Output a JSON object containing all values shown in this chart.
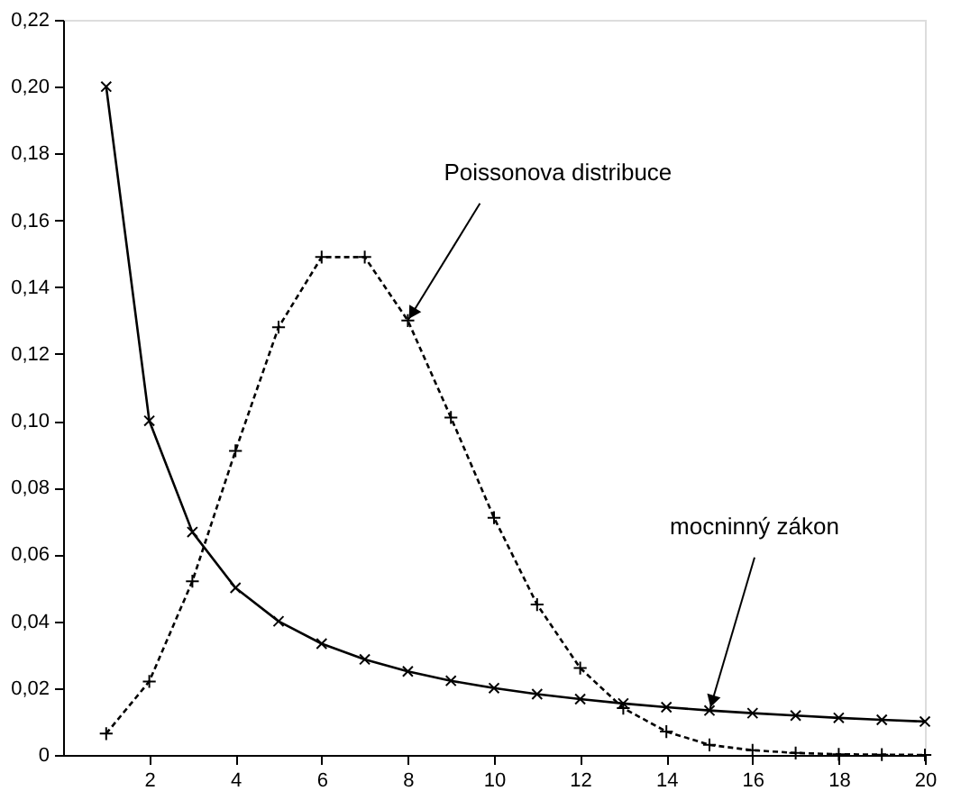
{
  "chart_data": {
    "type": "line",
    "x": [
      1,
      2,
      3,
      4,
      5,
      6,
      7,
      8,
      9,
      10,
      11,
      12,
      13,
      14,
      15,
      16,
      17,
      18,
      19,
      20
    ],
    "series": [
      {
        "color": "#000000",
        "marker": "cross",
        "line_style": "solid",
        "values": [
          0.2,
          0.1,
          0.0667,
          0.05,
          0.04,
          0.0333,
          0.0286,
          0.025,
          0.0222,
          0.02,
          0.0182,
          0.0167,
          0.0154,
          0.0143,
          0.0133,
          0.0125,
          0.0118,
          0.0111,
          0.0105,
          0.01
        ]
      },
      {
        "color": "#000000",
        "marker": "plus",
        "line_style": "dashed",
        "values": [
          0.0064,
          0.022,
          0.052,
          0.091,
          0.128,
          0.149,
          0.149,
          0.13,
          0.101,
          0.071,
          0.045,
          0.026,
          0.014,
          0.007,
          0.003,
          0.0014,
          0.0006,
          0.0002,
          0.0001,
          0.0
        ]
      }
    ],
    "xlim": [
      0,
      20
    ],
    "xticks": [
      2,
      4,
      6,
      8,
      10,
      12,
      14,
      16,
      18,
      20
    ],
    "ylim": [
      0,
      0.22
    ],
    "yticks": [
      {
        "value": 0,
        "label": "0"
      },
      {
        "value": 0.02,
        "label": "0,02"
      },
      {
        "value": 0.04,
        "label": "0,04"
      },
      {
        "value": 0.06,
        "label": "0,06"
      },
      {
        "value": 0.08,
        "label": "0,08"
      },
      {
        "value": 0.1,
        "label": "0,10"
      },
      {
        "value": 0.12,
        "label": "0,12"
      },
      {
        "value": 0.14,
        "label": "0,14"
      },
      {
        "value": 0.16,
        "label": "0,16"
      },
      {
        "value": 0.18,
        "label": "0,18"
      },
      {
        "value": 0.2,
        "label": "0,20"
      },
      {
        "value": 0.22,
        "label": "0,22"
      }
    ],
    "grid": false,
    "annotations": [
      {
        "text": "Poissonova distribuce",
        "x": 8,
        "y": 0.13
      },
      {
        "text": "mocninný zákon",
        "x": 15,
        "y": 0.0133
      }
    ]
  }
}
